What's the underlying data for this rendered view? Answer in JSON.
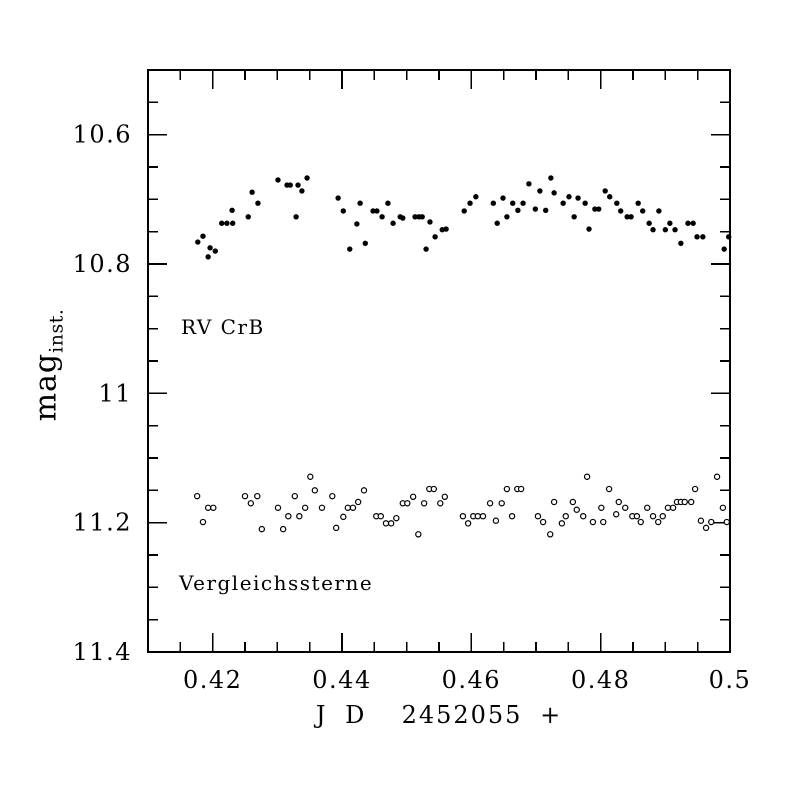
{
  "figure": {
    "background_color": "#ffffff",
    "ink_color": "#000000"
  },
  "chart_data": {
    "type": "scatter",
    "title": "",
    "xlabel": "J D  2452055 +",
    "ylabel_main": "mag",
    "ylabel_sub": "inst.",
    "xlim": [
      0.41,
      0.5
    ],
    "ylim": [
      10.5,
      11.4
    ],
    "y_axis_note": "magnitude scale, values increase downward",
    "grid": false,
    "legend_position": "none (labels drawn inside plot)",
    "x_major_ticks": [
      0.42,
      0.44,
      0.46,
      0.48,
      0.5
    ],
    "x_major_labels": [
      "0.42",
      "0.44",
      "0.46",
      "0.48",
      "0.5"
    ],
    "x_minor_ticks": [
      0.415,
      0.425,
      0.43,
      0.435,
      0.445,
      0.45,
      0.455,
      0.465,
      0.47,
      0.475,
      0.485,
      0.49,
      0.495
    ],
    "y_major_ticks": [
      10.6,
      10.8,
      11.0,
      11.2,
      11.4
    ],
    "y_major_labels": [
      "10.6",
      "10.8",
      "11",
      "11.2",
      "11.4"
    ],
    "y_minor_ticks": [
      10.55,
      10.65,
      10.7,
      10.75,
      10.85,
      10.9,
      10.95,
      11.05,
      11.1,
      11.15,
      11.25,
      11.3,
      11.35
    ],
    "annotations": [
      {
        "text": "RV CrB",
        "at_jd": 0.415,
        "at_mag": 10.9
      },
      {
        "text": "Vergleichssterne",
        "at_jd": 0.415,
        "at_mag": 11.29
      }
    ],
    "series": [
      {
        "name": "RV CrB",
        "marker": "filled-circle",
        "color": "#000000",
        "points": [
          [
            0.4177,
            10.766
          ],
          [
            0.4185,
            10.757
          ],
          [
            0.4193,
            10.789
          ],
          [
            0.4196,
            10.775
          ],
          [
            0.4204,
            10.78
          ],
          [
            0.4214,
            10.737
          ],
          [
            0.4222,
            10.737
          ],
          [
            0.423,
            10.717
          ],
          [
            0.4231,
            10.737
          ],
          [
            0.4255,
            10.727
          ],
          [
            0.4261,
            10.689
          ],
          [
            0.427,
            10.706
          ],
          [
            0.4301,
            10.67
          ],
          [
            0.4315,
            10.678
          ],
          [
            0.432,
            10.678
          ],
          [
            0.4329,
            10.727
          ],
          [
            0.4332,
            10.678
          ],
          [
            0.4338,
            10.687
          ],
          [
            0.4346,
            10.667
          ],
          [
            0.4394,
            10.698
          ],
          [
            0.4402,
            10.718
          ],
          [
            0.4412,
            10.777
          ],
          [
            0.4423,
            10.738
          ],
          [
            0.4428,
            10.706
          ],
          [
            0.4436,
            10.768
          ],
          [
            0.4448,
            10.718
          ],
          [
            0.4454,
            10.718
          ],
          [
            0.4462,
            10.727
          ],
          [
            0.4471,
            10.706
          ],
          [
            0.4479,
            10.737
          ],
          [
            0.449,
            10.727
          ],
          [
            0.4494,
            10.729
          ],
          [
            0.4513,
            10.727
          ],
          [
            0.4519,
            10.727
          ],
          [
            0.4524,
            10.727
          ],
          [
            0.453,
            10.777
          ],
          [
            0.4536,
            10.735
          ],
          [
            0.4544,
            10.758
          ],
          [
            0.4555,
            10.747
          ],
          [
            0.4561,
            10.746
          ],
          [
            0.4589,
            10.718
          ],
          [
            0.4598,
            10.706
          ],
          [
            0.4607,
            10.696
          ],
          [
            0.4634,
            10.706
          ],
          [
            0.464,
            10.737
          ],
          [
            0.4649,
            10.698
          ],
          [
            0.4655,
            10.727
          ],
          [
            0.4664,
            10.706
          ],
          [
            0.4672,
            10.717
          ],
          [
            0.468,
            10.706
          ],
          [
            0.4689,
            10.676
          ],
          [
            0.4699,
            10.715
          ],
          [
            0.4706,
            10.687
          ],
          [
            0.4715,
            10.717
          ],
          [
            0.4723,
            10.667
          ],
          [
            0.4728,
            10.69
          ],
          [
            0.4742,
            10.706
          ],
          [
            0.4751,
            10.696
          ],
          [
            0.4759,
            10.727
          ],
          [
            0.4765,
            10.698
          ],
          [
            0.4776,
            10.706
          ],
          [
            0.4782,
            10.746
          ],
          [
            0.4791,
            10.715
          ],
          [
            0.4797,
            10.715
          ],
          [
            0.4807,
            10.687
          ],
          [
            0.4814,
            10.696
          ],
          [
            0.4825,
            10.706
          ],
          [
            0.4831,
            10.718
          ],
          [
            0.4841,
            10.727
          ],
          [
            0.4847,
            10.727
          ],
          [
            0.4858,
            10.706
          ],
          [
            0.4865,
            10.718
          ],
          [
            0.4875,
            10.737
          ],
          [
            0.4881,
            10.747
          ],
          [
            0.489,
            10.718
          ],
          [
            0.49,
            10.747
          ],
          [
            0.4907,
            10.737
          ],
          [
            0.4915,
            10.747
          ],
          [
            0.4924,
            10.768
          ],
          [
            0.4935,
            10.737
          ],
          [
            0.4943,
            10.737
          ],
          [
            0.4949,
            10.758
          ],
          [
            0.4958,
            10.758
          ],
          [
            0.4991,
            10.777
          ],
          [
            0.4998,
            10.758
          ]
        ]
      },
      {
        "name": "Vergleichssterne",
        "marker": "open-circle",
        "color": "#000000",
        "points": [
          [
            0.4176,
            11.159
          ],
          [
            0.4185,
            11.199
          ],
          [
            0.4193,
            11.177
          ],
          [
            0.4201,
            11.177
          ],
          [
            0.425,
            11.159
          ],
          [
            0.4259,
            11.17
          ],
          [
            0.4269,
            11.159
          ],
          [
            0.4276,
            11.21
          ],
          [
            0.4301,
            11.177
          ],
          [
            0.4309,
            11.21
          ],
          [
            0.4317,
            11.19
          ],
          [
            0.4327,
            11.159
          ],
          [
            0.4334,
            11.19
          ],
          [
            0.4343,
            11.177
          ],
          [
            0.4351,
            11.129
          ],
          [
            0.4358,
            11.15
          ],
          [
            0.4369,
            11.177
          ],
          [
            0.4385,
            11.159
          ],
          [
            0.4391,
            11.208
          ],
          [
            0.4402,
            11.191
          ],
          [
            0.4409,
            11.177
          ],
          [
            0.4417,
            11.177
          ],
          [
            0.4425,
            11.168
          ],
          [
            0.4434,
            11.15
          ],
          [
            0.4453,
            11.19
          ],
          [
            0.446,
            11.19
          ],
          [
            0.4468,
            11.201
          ],
          [
            0.4476,
            11.201
          ],
          [
            0.4484,
            11.193
          ],
          [
            0.4494,
            11.17
          ],
          [
            0.4501,
            11.17
          ],
          [
            0.451,
            11.16
          ],
          [
            0.4518,
            11.218
          ],
          [
            0.4527,
            11.17
          ],
          [
            0.4535,
            11.148
          ],
          [
            0.4542,
            11.148
          ],
          [
            0.4552,
            11.17
          ],
          [
            0.4559,
            11.16
          ],
          [
            0.4587,
            11.19
          ],
          [
            0.4595,
            11.201
          ],
          [
            0.4603,
            11.19
          ],
          [
            0.461,
            11.19
          ],
          [
            0.4618,
            11.19
          ],
          [
            0.4629,
            11.17
          ],
          [
            0.4638,
            11.197
          ],
          [
            0.4647,
            11.17
          ],
          [
            0.4655,
            11.148
          ],
          [
            0.4663,
            11.19
          ],
          [
            0.4671,
            11.148
          ],
          [
            0.4677,
            11.148
          ],
          [
            0.4703,
            11.19
          ],
          [
            0.4711,
            11.199
          ],
          [
            0.4722,
            11.218
          ],
          [
            0.4728,
            11.168
          ],
          [
            0.474,
            11.201
          ],
          [
            0.4746,
            11.19
          ],
          [
            0.4757,
            11.168
          ],
          [
            0.4763,
            11.18
          ],
          [
            0.4773,
            11.19
          ],
          [
            0.4779,
            11.129
          ],
          [
            0.4788,
            11.199
          ],
          [
            0.4801,
            11.177
          ],
          [
            0.4804,
            11.199
          ],
          [
            0.4813,
            11.148
          ],
          [
            0.4824,
            11.187
          ],
          [
            0.4828,
            11.168
          ],
          [
            0.4838,
            11.177
          ],
          [
            0.4849,
            11.19
          ],
          [
            0.4856,
            11.19
          ],
          [
            0.4862,
            11.199
          ],
          [
            0.4872,
            11.177
          ],
          [
            0.4881,
            11.19
          ],
          [
            0.4889,
            11.199
          ],
          [
            0.4896,
            11.19
          ],
          [
            0.4904,
            11.177
          ],
          [
            0.4912,
            11.177
          ],
          [
            0.4918,
            11.168
          ],
          [
            0.4924,
            11.168
          ],
          [
            0.493,
            11.168
          ],
          [
            0.494,
            11.168
          ],
          [
            0.4946,
            11.148
          ],
          [
            0.4955,
            11.197
          ],
          [
            0.4963,
            11.208
          ],
          [
            0.4971,
            11.199
          ],
          [
            0.498,
            11.129
          ],
          [
            0.4989,
            11.177
          ],
          [
            0.4995,
            11.199
          ]
        ]
      }
    ]
  }
}
